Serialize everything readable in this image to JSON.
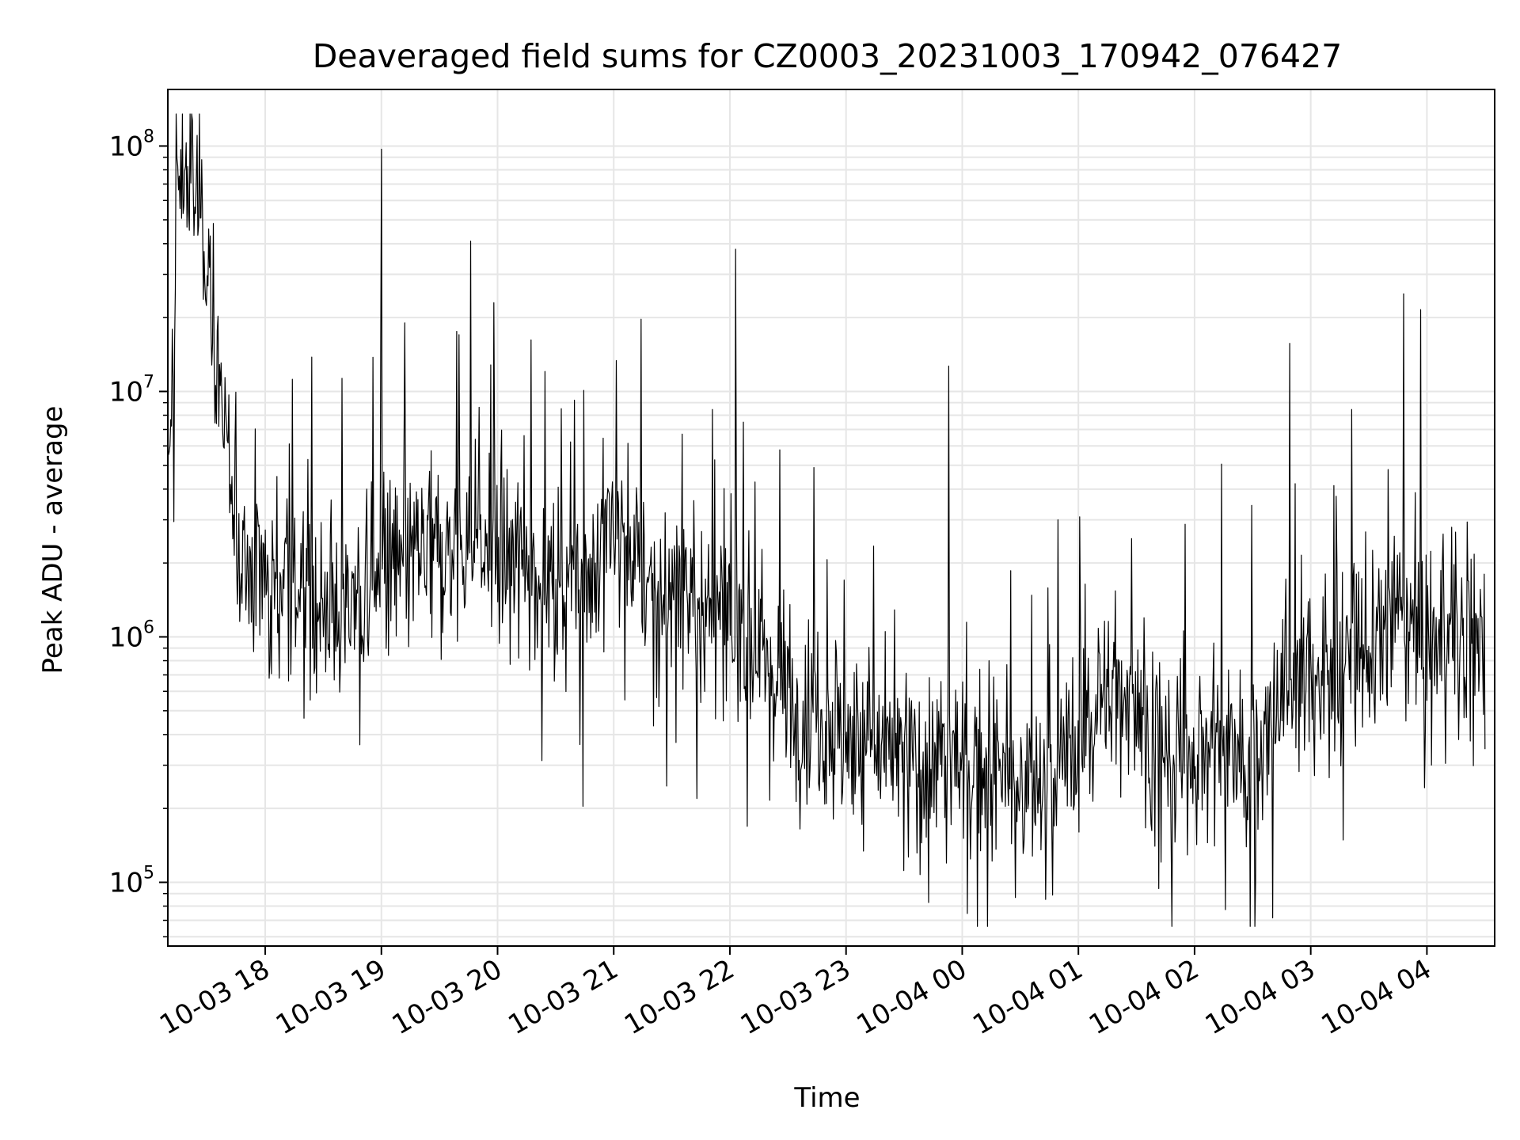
{
  "chart_data": {
    "type": "line",
    "title": "Deaveraged field sums for CZ0003_20231003_170942_076427",
    "xlabel": "Time",
    "ylabel": "Peak ADU - average",
    "yscale": "log",
    "xlim": [
      "2023-10-03 17:09:42",
      "2023-10-04 04:35:00"
    ],
    "ylim": [
      55000,
      170000000
    ],
    "grid": true,
    "line_color": "#000000",
    "grid_color": "#e6e6e6",
    "x_tick_labels": [
      "10-03 18",
      "10-03 19",
      "10-03 20",
      "10-03 21",
      "10-03 22",
      "10-03 23",
      "10-04 00",
      "10-04 01",
      "10-04 02",
      "10-04 03",
      "10-04 04"
    ],
    "x_tick_values": [
      "2023-10-03 18:00",
      "2023-10-03 19:00",
      "2023-10-03 20:00",
      "2023-10-03 21:00",
      "2023-10-03 22:00",
      "2023-10-03 23:00",
      "2023-10-04 00:00",
      "2023-10-04 01:00",
      "2023-10-04 02:00",
      "2023-10-04 03:00",
      "2023-10-04 04:00"
    ],
    "y_ticks": [
      {
        "value": 100000,
        "base": "10",
        "exp": "5"
      },
      {
        "value": 1000000,
        "base": "10",
        "exp": "6"
      },
      {
        "value": 10000000,
        "base": "10",
        "exp": "7"
      },
      {
        "value": 100000000,
        "base": "10",
        "exp": "8"
      }
    ],
    "series": [
      {
        "x": [
          "2023-10-03 17:10",
          "2023-10-03 17:15",
          "2023-10-03 17:20",
          "2023-10-03 17:25",
          "2023-10-03 17:30",
          "2023-10-03 17:35",
          "2023-10-03 17:40",
          "2023-10-03 17:45",
          "2023-10-03 17:50",
          "2023-10-03 17:55",
          "2023-10-03 18:00",
          "2023-10-03 18:15",
          "2023-10-03 18:30",
          "2023-10-03 18:45",
          "2023-10-03 19:00",
          "2023-10-03 19:15",
          "2023-10-03 19:30",
          "2023-10-03 19:45",
          "2023-10-03 20:00",
          "2023-10-03 20:15",
          "2023-10-03 20:30",
          "2023-10-03 20:45",
          "2023-10-03 21:00",
          "2023-10-03 21:15",
          "2023-10-03 21:30",
          "2023-10-03 21:45",
          "2023-10-03 22:00",
          "2023-10-03 22:15",
          "2023-10-03 22:30",
          "2023-10-03 22:45",
          "2023-10-03 23:00",
          "2023-10-03 23:15",
          "2023-10-03 23:30",
          "2023-10-03 23:45",
          "2023-10-04 00:00",
          "2023-10-04 00:15",
          "2023-10-04 00:30",
          "2023-10-04 00:45",
          "2023-10-04 01:00",
          "2023-10-04 01:15",
          "2023-10-04 01:30",
          "2023-10-04 01:45",
          "2023-10-04 02:00",
          "2023-10-04 02:15",
          "2023-10-04 02:30",
          "2023-10-04 02:45",
          "2023-10-04 03:00",
          "2023-10-04 03:15",
          "2023-10-04 03:30",
          "2023-10-04 03:45",
          "2023-10-04 04:00",
          "2023-10-04 04:15",
          "2023-10-04 04:30"
        ],
        "values": [
          3000000,
          70000000,
          80000000,
          60000000,
          40000000,
          15000000,
          5000000,
          2500000,
          2000000,
          2000000,
          1800000,
          1600000,
          1400000,
          1300000,
          1800000,
          2000000,
          2200000,
          2400000,
          2200000,
          2000000,
          1700000,
          1800000,
          3000000,
          1800000,
          1300000,
          1500000,
          1100000,
          900000,
          600000,
          500000,
          400000,
          350000,
          300000,
          320000,
          300000,
          280000,
          250000,
          250000,
          400000,
          600000,
          600000,
          300000,
          350000,
          400000,
          300000,
          600000,
          700000,
          800000,
          900000,
          1200000,
          1000000,
          900000,
          1200000
        ],
        "spikes": [
          {
            "x": "2023-10-03 18:24",
            "value": 13800000
          },
          {
            "x": "2023-10-03 19:00",
            "value": 97000000
          },
          {
            "x": "2023-10-03 19:46",
            "value": 41000000
          },
          {
            "x": "2023-10-03 19:58",
            "value": 23000000
          },
          {
            "x": "2023-10-03 21:14",
            "value": 19700000
          },
          {
            "x": "2023-10-03 22:03",
            "value": 38000000
          },
          {
            "x": "2023-10-03 23:53",
            "value": 12700000
          },
          {
            "x": "2023-10-04 02:49",
            "value": 15700000
          },
          {
            "x": "2023-10-04 03:48",
            "value": 25000000
          }
        ]
      }
    ]
  }
}
